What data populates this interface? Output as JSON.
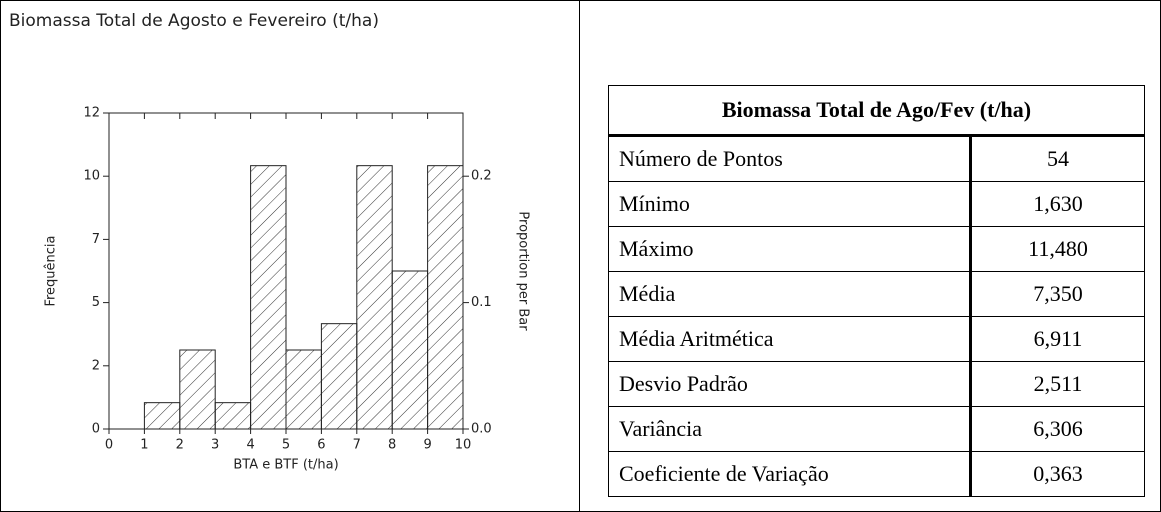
{
  "chart_data": {
    "type": "histogram",
    "title": "Biomassa Total de Agosto e Fevereiro (t/ha)",
    "xlabel": "BTA e BTF (t/ha)",
    "ylabel": "Frequência",
    "y2label": "Proportion per Bar",
    "bins": [
      1,
      2,
      3,
      4,
      5,
      6,
      7,
      8,
      9,
      10
    ],
    "counts": [
      1,
      3,
      1,
      10,
      3,
      4,
      10,
      6,
      10
    ],
    "xlim": [
      0,
      10
    ],
    "xticks": [
      0,
      1,
      2,
      3,
      4,
      5,
      6,
      7,
      8,
      9,
      10
    ],
    "ylim": [
      0,
      12
    ],
    "yticks": [
      0,
      {
        "value": 2.4,
        "label": "2"
      },
      {
        "value": 4.8,
        "label": "5"
      },
      {
        "value": 7.2,
        "label": "7"
      },
      {
        "value": 9.6,
        "label": "10"
      },
      12
    ],
    "y2lim": [
      0,
      0.25
    ],
    "y2ticks": [
      {
        "value": 0,
        "label": "0.0"
      },
      0.1,
      0.2
    ]
  },
  "table": {
    "title": "Biomassa Total de Ago/Fev (t/ha)",
    "rows": [
      [
        "Número de Pontos",
        "54"
      ],
      [
        "Mínimo",
        "1,630"
      ],
      [
        "Máximo",
        "11,480"
      ],
      [
        "Média",
        "7,350"
      ],
      [
        "Média Aritmética",
        "6,911"
      ],
      [
        "Desvio Padrão",
        "2,511"
      ],
      [
        "Variância",
        "6,306"
      ],
      [
        "Coeficiente de Variação",
        "0,363"
      ]
    ]
  }
}
